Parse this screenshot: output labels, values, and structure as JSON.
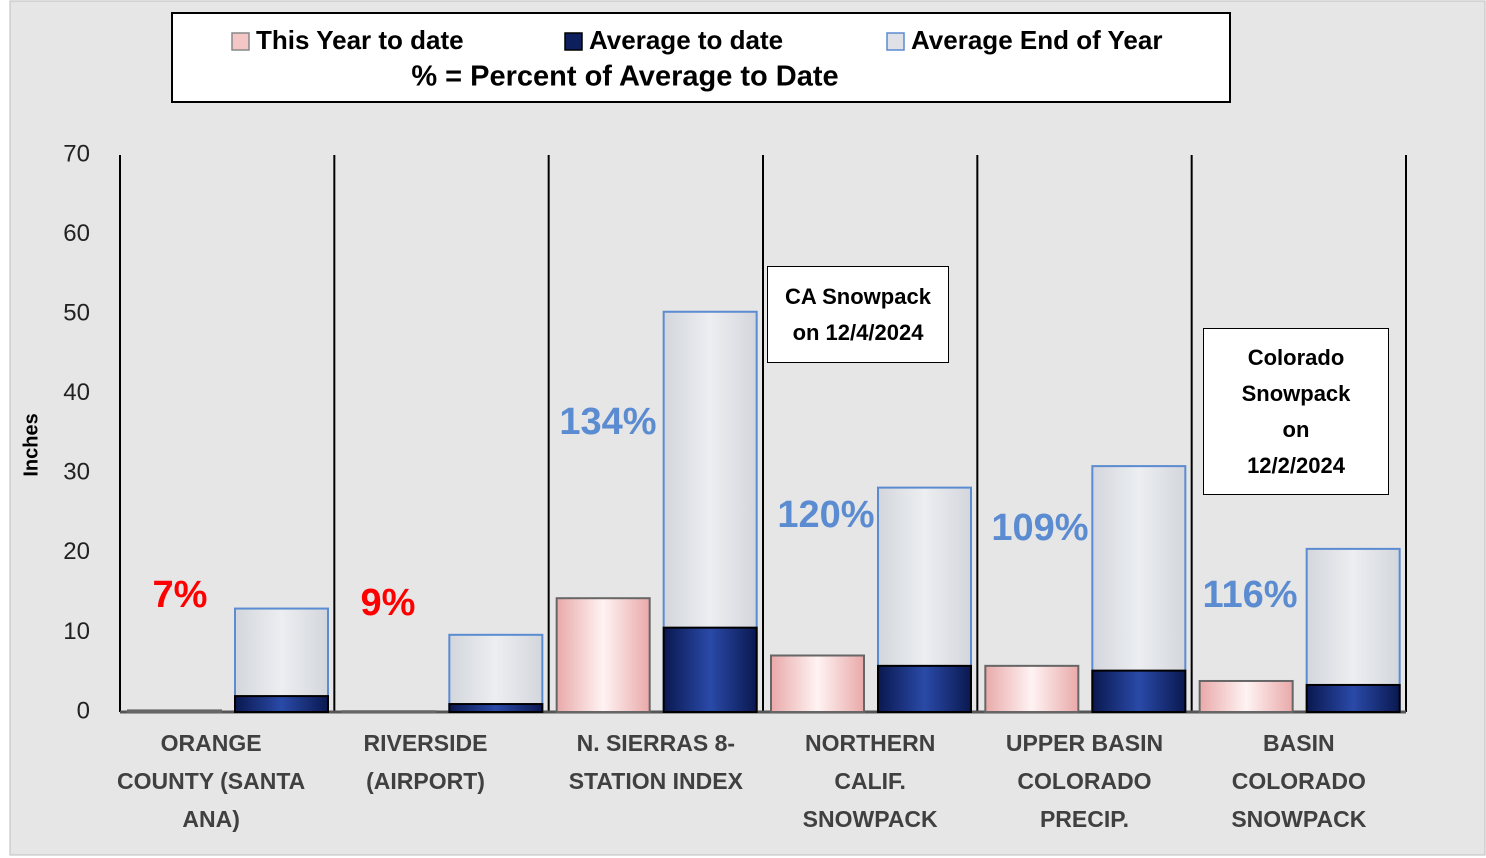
{
  "chart_data": {
    "type": "bar",
    "title": "% = Percent of Average to Date",
    "y_label": "Inches",
    "categories": [
      "ORANGE COUNTY (SANTA ANA)",
      "RIVERSIDE (AIRPORT)",
      "N. SIERRAS 8-STATION INDEX",
      "NORTHERN CALIF. SNOWPACK",
      "UPPER BASIN COLORADO PRECIP.",
      "BASIN COLORADO SNOWPACK"
    ],
    "series": [
      {
        "name": "This Year to date",
        "color": "#f4c6c6",
        "values": [
          0.2,
          0.1,
          14.3,
          7.1,
          5.8,
          3.9
        ]
      },
      {
        "name": "Average to date",
        "color": "#0d1f5c",
        "values": [
          2,
          1,
          10.6,
          5.8,
          5.2,
          3.4
        ]
      },
      {
        "name": "Average End of Year",
        "color": "#dfe1e6",
        "values": [
          13,
          9.7,
          50.3,
          28.2,
          30.9,
          20.5
        ]
      }
    ],
    "percent_labels": [
      "7%",
      "9%",
      "134%",
      "120%",
      "109%",
      "116%"
    ],
    "percent_label_colors": [
      "#ff0000",
      "#ff0000",
      "#5b8bd0",
      "#5b8bd0",
      "#5b8bd0",
      "#5b8bd0"
    ],
    "annotations": [
      "CA Snowpack on 12/4/2024",
      "Colorado Snowpack on 12/2/2024"
    ],
    "ylim": [
      0,
      70
    ],
    "yticks": [
      0,
      10,
      20,
      30,
      40,
      50,
      60,
      70
    ],
    "grid": false
  }
}
